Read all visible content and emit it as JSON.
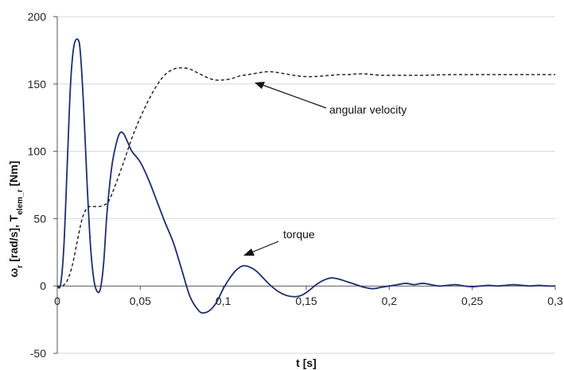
{
  "chart_data": {
    "type": "line",
    "xlabel": "t [s]",
    "ylabel": {
      "main_a": "ω",
      "sub_a": "r",
      "main_b": " [rad/s],    T",
      "sub_b": "elem_r",
      "main_c": " [Nm]"
    },
    "xlim": [
      0,
      0.3
    ],
    "ylim": [
      -50,
      200
    ],
    "grid": "horizontal",
    "x_ticks": [
      {
        "value": 0,
        "label": "0"
      },
      {
        "value": 0.05,
        "label": "0,05"
      },
      {
        "value": 0.1,
        "label": "0,1"
      },
      {
        "value": 0.15,
        "label": "0,15"
      },
      {
        "value": 0.2,
        "label": "0,2"
      },
      {
        "value": 0.25,
        "label": "0,25"
      },
      {
        "value": 0.3,
        "label": "0,3"
      }
    ],
    "y_ticks": [
      {
        "value": -50,
        "label": "-50"
      },
      {
        "value": 0,
        "label": "0"
      },
      {
        "value": 50,
        "label": "50"
      },
      {
        "value": 100,
        "label": "100"
      },
      {
        "value": 150,
        "label": "150"
      },
      {
        "value": 200,
        "label": "200"
      }
    ],
    "series": [
      {
        "name": "angular velocity",
        "style": "dashed",
        "color": "#1a1a1a",
        "points": [
          [
            0,
            0
          ],
          [
            0.003,
            0
          ],
          [
            0.006,
            4
          ],
          [
            0.009,
            15
          ],
          [
            0.012,
            33
          ],
          [
            0.015,
            50
          ],
          [
            0.018,
            58
          ],
          [
            0.021,
            59
          ],
          [
            0.025,
            59
          ],
          [
            0.028,
            60
          ],
          [
            0.031,
            63
          ],
          [
            0.035,
            75
          ],
          [
            0.04,
            92
          ],
          [
            0.045,
            110
          ],
          [
            0.05,
            125
          ],
          [
            0.055,
            138
          ],
          [
            0.06,
            149
          ],
          [
            0.065,
            157
          ],
          [
            0.07,
            161
          ],
          [
            0.075,
            162
          ],
          [
            0.08,
            161
          ],
          [
            0.085,
            158
          ],
          [
            0.09,
            155
          ],
          [
            0.095,
            153
          ],
          [
            0.1,
            153
          ],
          [
            0.105,
            154
          ],
          [
            0.11,
            156
          ],
          [
            0.115,
            157
          ],
          [
            0.12,
            158
          ],
          [
            0.125,
            159
          ],
          [
            0.13,
            159
          ],
          [
            0.135,
            158
          ],
          [
            0.14,
            157
          ],
          [
            0.145,
            156
          ],
          [
            0.15,
            155.5
          ],
          [
            0.155,
            155.5
          ],
          [
            0.16,
            156
          ],
          [
            0.165,
            156.5
          ],
          [
            0.17,
            157
          ],
          [
            0.175,
            157
          ],
          [
            0.18,
            157.5
          ],
          [
            0.185,
            157.5
          ],
          [
            0.19,
            157
          ],
          [
            0.195,
            156.5
          ],
          [
            0.2,
            156.5
          ],
          [
            0.21,
            156.5
          ],
          [
            0.22,
            156.5
          ],
          [
            0.23,
            156.8
          ],
          [
            0.24,
            157
          ],
          [
            0.25,
            157
          ],
          [
            0.26,
            157
          ],
          [
            0.27,
            157
          ],
          [
            0.28,
            157
          ],
          [
            0.29,
            157
          ],
          [
            0.3,
            157
          ]
        ]
      },
      {
        "name": "torque",
        "style": "solid",
        "color": "#1f2d6e",
        "points": [
          [
            0,
            0
          ],
          [
            0.002,
            1
          ],
          [
            0.004,
            30
          ],
          [
            0.006,
            90
          ],
          [
            0.008,
            150
          ],
          [
            0.01,
            178
          ],
          [
            0.0125,
            183
          ],
          [
            0.014,
            172
          ],
          [
            0.016,
            130
          ],
          [
            0.018,
            75
          ],
          [
            0.02,
            30
          ],
          [
            0.022,
            5
          ],
          [
            0.024,
            -4
          ],
          [
            0.026,
            -2
          ],
          [
            0.028,
            18
          ],
          [
            0.03,
            55
          ],
          [
            0.033,
            90
          ],
          [
            0.036,
            108
          ],
          [
            0.038,
            114
          ],
          [
            0.04,
            113
          ],
          [
            0.042,
            108
          ],
          [
            0.045,
            100
          ],
          [
            0.05,
            92
          ],
          [
            0.055,
            79
          ],
          [
            0.06,
            63
          ],
          [
            0.065,
            47
          ],
          [
            0.07,
            32
          ],
          [
            0.075,
            12
          ],
          [
            0.08,
            -8
          ],
          [
            0.085,
            -18
          ],
          [
            0.088,
            -20
          ],
          [
            0.092,
            -18
          ],
          [
            0.096,
            -12
          ],
          [
            0.1,
            -2
          ],
          [
            0.104,
            6
          ],
          [
            0.108,
            12
          ],
          [
            0.112,
            15
          ],
          [
            0.116,
            14
          ],
          [
            0.12,
            11
          ],
          [
            0.124,
            6
          ],
          [
            0.128,
            1
          ],
          [
            0.133,
            -4
          ],
          [
            0.138,
            -7
          ],
          [
            0.143,
            -8
          ],
          [
            0.147,
            -7
          ],
          [
            0.151,
            -4
          ],
          [
            0.156,
            1
          ],
          [
            0.16,
            4
          ],
          [
            0.165,
            6
          ],
          [
            0.17,
            5
          ],
          [
            0.175,
            3
          ],
          [
            0.18,
            1
          ],
          [
            0.185,
            -1
          ],
          [
            0.19,
            -2
          ],
          [
            0.195,
            -1
          ],
          [
            0.2,
            0
          ],
          [
            0.205,
            1
          ],
          [
            0.21,
            2
          ],
          [
            0.215,
            1
          ],
          [
            0.22,
            2
          ],
          [
            0.225,
            1
          ],
          [
            0.23,
            0
          ],
          [
            0.235,
            0.5
          ],
          [
            0.24,
            1
          ],
          [
            0.245,
            0
          ],
          [
            0.25,
            -0.5
          ],
          [
            0.255,
            0
          ],
          [
            0.26,
            0.5
          ],
          [
            0.265,
            0
          ],
          [
            0.27,
            0.5
          ],
          [
            0.275,
            1
          ],
          [
            0.28,
            0.5
          ],
          [
            0.285,
            0
          ],
          [
            0.29,
            0.5
          ],
          [
            0.295,
            0
          ],
          [
            0.3,
            0
          ]
        ]
      }
    ],
    "annotations": [
      {
        "text": "angular velocity",
        "target_series": "angular velocity",
        "target_x": 0.12,
        "target_y": 154
      },
      {
        "text": "torque",
        "target_series": "torque",
        "target_x": 0.113,
        "target_y": 16
      }
    ]
  }
}
